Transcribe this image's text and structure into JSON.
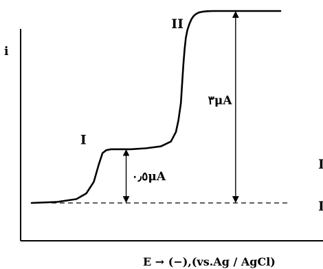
{
  "chart_data": {
    "type": "line",
    "title": "",
    "xlabel": "E → (−),(vs.Ag / AgCl)",
    "ylabel": "i",
    "x_ticks": [],
    "y_ticks": [],
    "grid": false,
    "legend": "none",
    "xlim": [
      0,
      100
    ],
    "ylim": [
      0,
      100
    ],
    "series": [
      {
        "x": [
          0,
          10,
          18,
          22,
          25,
          27,
          28.5,
          30,
          32,
          36,
          40,
          46,
          52,
          56,
          58,
          59,
          60,
          60.5,
          61,
          61.5,
          62,
          62.6,
          63.4,
          64.2,
          65,
          66,
          67.2,
          68.6,
          70.5,
          73,
          76,
          80,
          86,
          93,
          100
        ],
        "values": [
          0,
          0.5,
          2,
          5,
          11,
          20,
          26,
          27.5,
          28,
          28,
          28,
          28.5,
          29.5,
          32,
          37,
          43,
          52,
          62,
          72,
          80,
          86,
          90,
          93.2,
          95.6,
          97.2,
          98.4,
          99.2,
          99.6,
          99.9,
          100,
          100,
          100,
          100,
          100,
          100
        ]
      }
    ],
    "baseline": {
      "y": 0,
      "style": "dashed"
    },
    "annotations": [
      {
        "id": "wave1-label",
        "text": "I",
        "x": 24,
        "y": 32
      },
      {
        "id": "wave2-label",
        "text": "II",
        "x": 60,
        "y": 110
      },
      {
        "id": "wave1-height",
        "text": "٠٫٥μA",
        "x": 38,
        "from_y": 0,
        "to_y": 28
      },
      {
        "id": "wave2-height",
        "text": "٣μA",
        "x": 82,
        "from_y": 0,
        "to_y": 100
      }
    ],
    "edge_marks": [
      "I",
      "I"
    ]
  }
}
